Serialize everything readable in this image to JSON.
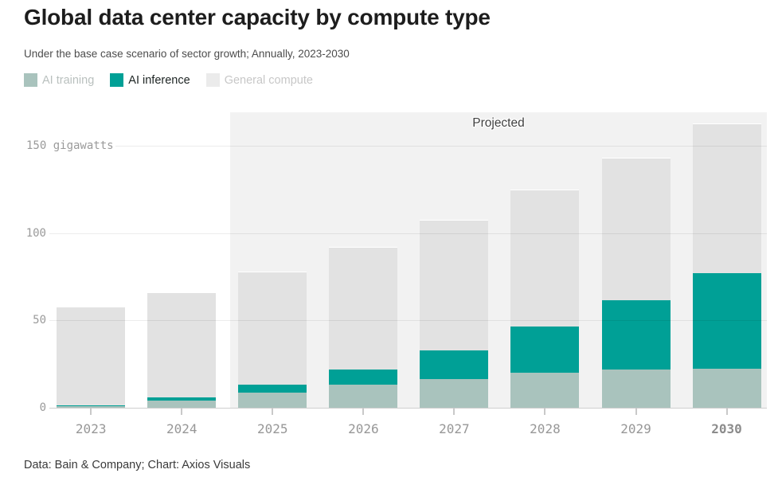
{
  "header": {
    "title": "Global data center capacity by compute type",
    "subtitle": "Under the base case scenario of sector growth; Annually, 2023-2030"
  },
  "legend": {
    "items": [
      {
        "label": "AI training",
        "color": "#a9c3bd",
        "label_color": "#b9c0be"
      },
      {
        "label": "AI inference",
        "color": "#00a096",
        "label_color": "#1d2423"
      },
      {
        "label": "General compute",
        "color": "#ebebeb",
        "label_color": "#c7c7c7"
      }
    ]
  },
  "chart_data": {
    "type": "bar",
    "stacked": true,
    "title": "Global data center capacity by compute type",
    "subtitle": "Under the base case scenario of sector growth; Annually, 2023-2030",
    "categories": [
      "2023",
      "2024",
      "2025",
      "2026",
      "2027",
      "2028",
      "2029",
      "2030"
    ],
    "series": [
      {
        "name": "AI training",
        "color": "#a9c3bd",
        "values": [
          1.5,
          4.5,
          9,
          13.5,
          17,
          20.5,
          22.5,
          23
        ]
      },
      {
        "name": "AI inference",
        "color": "#00a096",
        "values": [
          0.5,
          2,
          4.5,
          9,
          16.5,
          26.5,
          39.5,
          54.5
        ]
      },
      {
        "name": "General compute",
        "color": "#e2e2e2",
        "values": [
          56,
          59.5,
          64.5,
          69.5,
          74,
          78,
          81,
          85.5
        ]
      }
    ],
    "totals": [
      58,
      66,
      78,
      92,
      107.5,
      125,
      143,
      163
    ],
    "unit": "gigawatts",
    "yticks": [
      0,
      50,
      100,
      150
    ],
    "ytick_labels": [
      "0",
      "50",
      "100",
      "150 gigawatts"
    ],
    "ylim": [
      0,
      169
    ],
    "grid": true,
    "legend_position": "top",
    "projected": {
      "label": "Projected",
      "start_category": "2025",
      "band_color": "#f2f2f2"
    },
    "highlight_category": "2030"
  },
  "footer": {
    "text": "Data: Bain & Company; Chart: Axios Visuals"
  }
}
